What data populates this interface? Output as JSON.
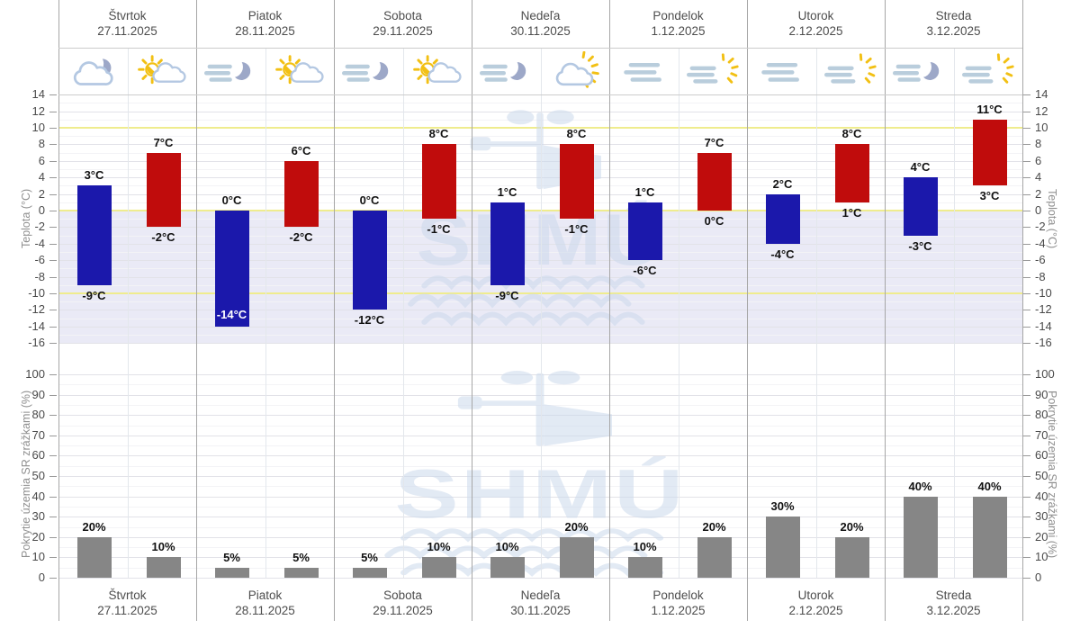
{
  "watermark_text": "SHMÚ",
  "axes": {
    "temp": {
      "title": "Teplota (°C)",
      "min": -16,
      "max": 14,
      "step": 2,
      "minor_step": 1,
      "unit": "°C",
      "highlight_lines": [
        10,
        0,
        -10
      ]
    },
    "precip": {
      "title": "Pokrytie územia SR zrážkami (%)",
      "min": 0,
      "max": 100,
      "step": 10,
      "minor_step": 5,
      "unit": "%"
    }
  },
  "days": [
    {
      "name": "Štvrtok",
      "date": "27.11.2025",
      "icons": [
        "cloud-moon",
        "sun-cloud"
      ]
    },
    {
      "name": "Piatok",
      "date": "28.11.2025",
      "icons": [
        "fog-moon",
        "sun-cloud"
      ]
    },
    {
      "name": "Sobota",
      "date": "29.11.2025",
      "icons": [
        "fog-moon",
        "sun-cloud"
      ]
    },
    {
      "name": "Nedeľa",
      "date": "30.11.2025",
      "icons": [
        "fog-moon",
        "cloud-sun"
      ]
    },
    {
      "name": "Pondelok",
      "date": "1.12.2025",
      "icons": [
        "fog",
        "fog-sun"
      ]
    },
    {
      "name": "Utorok",
      "date": "2.12.2025",
      "icons": [
        "fog",
        "fog-sun"
      ]
    },
    {
      "name": "Streda",
      "date": "3.12.2025",
      "icons": [
        "fog-moon",
        "fog-sun"
      ]
    }
  ],
  "chart_data": [
    {
      "type": "bar",
      "subtype": "floating-range-columns",
      "title": "",
      "xlabel": "",
      "ylabel": "Teplota (°C)",
      "ylim": [
        -16,
        14
      ],
      "ytick_step": 2,
      "highlight_gridlines": [
        10,
        0,
        -10
      ],
      "grid": true,
      "legend_position": "none",
      "categories": [
        "Štvrtok 27.11.2025",
        "Piatok 28.11.2025",
        "Sobota 29.11.2025",
        "Nedeľa 30.11.2025",
        "Pondelok 1.12.2025",
        "Utorok 2.12.2025",
        "Streda 3.12.2025"
      ],
      "series": [
        {
          "name": "night-half-temperature-range",
          "color": "#1b18ab",
          "ranges": [
            [
              -9,
              3
            ],
            [
              -14,
              0
            ],
            [
              -12,
              0
            ],
            [
              -9,
              1
            ],
            [
              -6,
              1
            ],
            [
              -4,
              2
            ],
            [
              -3,
              4
            ]
          ],
          "bottom_label_inside": [
            false,
            true,
            false,
            false,
            false,
            false,
            false
          ]
        },
        {
          "name": "day-half-temperature-range",
          "color": "#c00c0c",
          "ranges": [
            [
              -2,
              7
            ],
            [
              -2,
              6
            ],
            [
              -1,
              8
            ],
            [
              -1,
              8
            ],
            [
              0,
              7
            ],
            [
              1,
              8
            ],
            [
              3,
              11
            ]
          ],
          "bottom_label_inside": [
            false,
            false,
            false,
            false,
            false,
            false,
            false
          ]
        }
      ]
    },
    {
      "type": "bar",
      "title": "",
      "xlabel": "",
      "ylabel": "Pokrytie územia SR zrážkami (%)",
      "ylim": [
        0,
        100
      ],
      "ytick_step": 10,
      "grid": true,
      "legend_position": "none",
      "categories": [
        "Štvrtok 27.11.2025",
        "Piatok 28.11.2025",
        "Sobota 29.11.2025",
        "Nedeľa 30.11.2025",
        "Pondelok 1.12.2025",
        "Utorok 2.12.2025",
        "Streda 3.12.2025"
      ],
      "series": [
        {
          "name": "first-half-of-day",
          "color": "#868686",
          "values": [
            20,
            5,
            5,
            10,
            10,
            30,
            40
          ]
        },
        {
          "name": "second-half-of-day",
          "color": "#868686",
          "values": [
            10,
            5,
            10,
            20,
            20,
            20,
            40
          ]
        }
      ]
    }
  ],
  "colors": {
    "temp_min_bar": "#1b18ab",
    "temp_max_bar": "#c00c0c",
    "precip_bar": "#868686",
    "below_zero_bg": "#eaeaf6",
    "highlight_gridline": "#efec8e",
    "grid_major": "#e2e2e8",
    "grid_minor": "#f3f3f6",
    "day_separator": "#a6a6a6",
    "half_day_separator": "#e3e7ec",
    "row_border": "#cccccc",
    "tick_text": "#4a4a4a",
    "header_text": "#4d4d4d",
    "axis_title_text": "#8f8f8f",
    "value_label_text": "#111111",
    "value_label_inverse": "#ffffff",
    "watermark": "#ccd9ec",
    "icon_cloud": "#b4c8e2",
    "icon_moon": "#9da8c8",
    "icon_fog": "#b9cddc",
    "icon_sun": "#f2c014"
  }
}
